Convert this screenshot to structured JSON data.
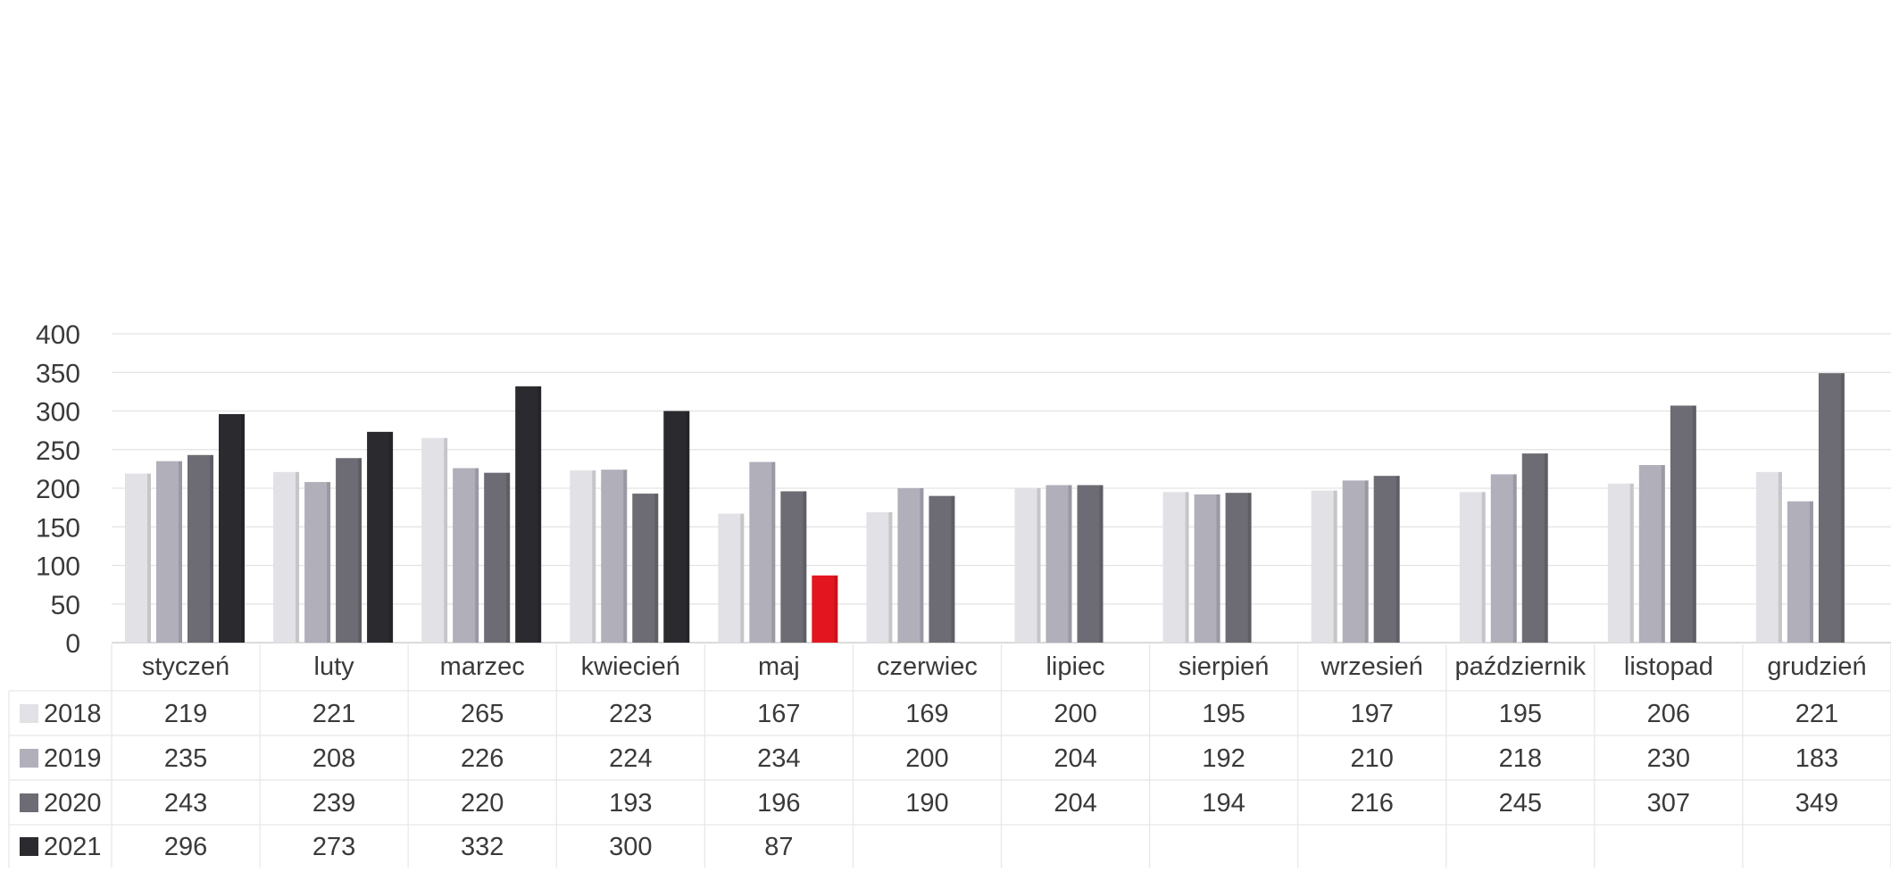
{
  "chart_data": {
    "type": "bar",
    "categories": [
      "styczeń",
      "luty",
      "marzec",
      "kwiecień",
      "maj",
      "czerwiec",
      "lipiec",
      "sierpień",
      "wrzesień",
      "październik",
      "listopad",
      "grudzień"
    ],
    "series": [
      {
        "name": "2018",
        "color": "#e2e1e5",
        "values": [
          219,
          221,
          265,
          223,
          167,
          169,
          200,
          195,
          197,
          195,
          206,
          221
        ]
      },
      {
        "name": "2019",
        "color": "#b0afba",
        "values": [
          235,
          208,
          226,
          224,
          234,
          200,
          204,
          192,
          210,
          218,
          230,
          183
        ]
      },
      {
        "name": "2020",
        "color": "#6d6c74",
        "values": [
          243,
          239,
          220,
          193,
          196,
          190,
          204,
          194,
          216,
          245,
          307,
          349
        ]
      },
      {
        "name": "2021",
        "color": "#2b2a2e",
        "values": [
          296,
          273,
          332,
          300,
          87,
          null,
          null,
          null,
          null,
          null,
          null,
          null
        ]
      }
    ],
    "highlight": {
      "series": "2021",
      "category": "maj",
      "color": "#e3161f"
    },
    "ylim": [
      0,
      400
    ],
    "yticks": [
      "0",
      "50",
      "100",
      "150",
      "200",
      "250",
      "300",
      "350",
      "400"
    ],
    "grid": true,
    "legend": "data-table"
  }
}
